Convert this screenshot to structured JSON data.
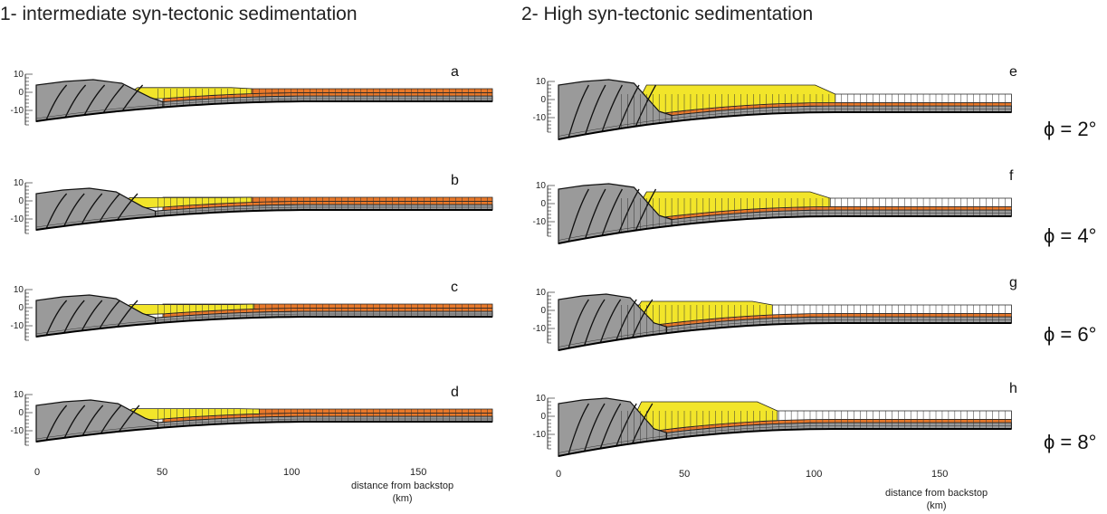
{
  "columns": [
    {
      "title": "1- intermediate syn-tectonic sedimentation",
      "panels": [
        {
          "label": "a",
          "wedge_km": 48,
          "basin_km": 0
        },
        {
          "label": "b",
          "wedge_km": 48,
          "basin_km": 0
        },
        {
          "label": "c",
          "wedge_km": 48,
          "basin_km": 0
        },
        {
          "label": "d",
          "wedge_km": 48,
          "basin_km": 0
        }
      ],
      "y_ticks": [
        "10",
        "0",
        "-10"
      ],
      "x_ticks": [
        "0",
        "50",
        "100",
        "150"
      ],
      "x_label_line1": "distance from backstop",
      "x_label_line2": "(km)"
    },
    {
      "title": "2- High syn-tectonic sedimentation",
      "panels": [
        {
          "label": "e",
          "phi": "ϕ = 2°"
        },
        {
          "label": "f",
          "phi": "ϕ = 4°"
        },
        {
          "label": "g",
          "phi": "ϕ = 6°"
        },
        {
          "label": "h",
          "phi": "ϕ = 8°"
        }
      ],
      "y_ticks": [
        "10",
        "0",
        "-10"
      ],
      "x_ticks": [
        "0",
        "50",
        "100",
        "150"
      ],
      "x_label_line1": "distance from backstop",
      "x_label_line2": "(km)"
    }
  ],
  "colors": {
    "wedge": "#9a9a9a",
    "sediment": "#f2e52a",
    "orange_layer": "#e8782a",
    "grid_line": "#333333"
  }
}
